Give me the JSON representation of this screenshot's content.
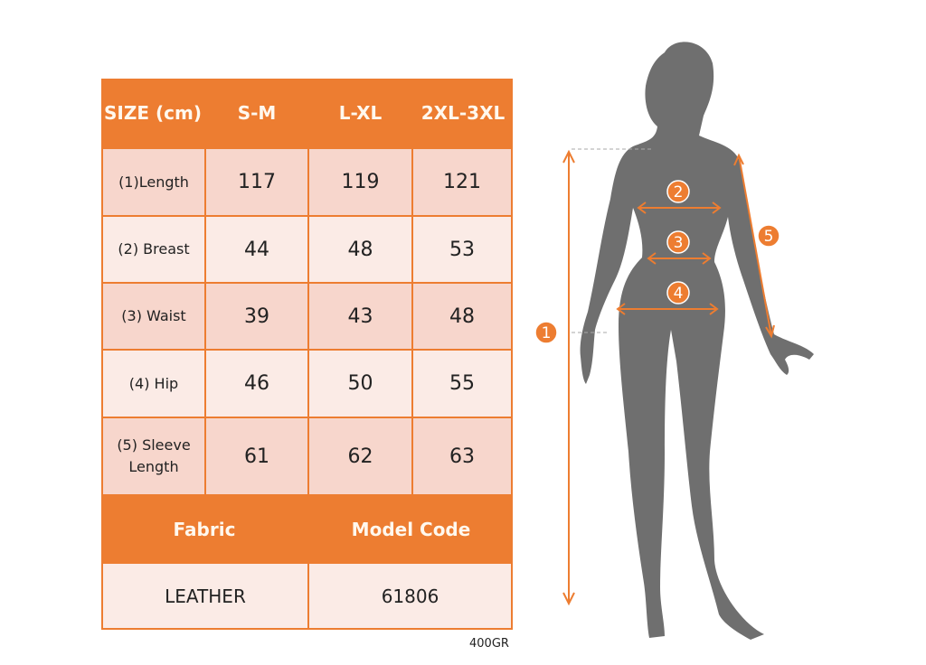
{
  "table": {
    "header": [
      "SIZE (cm)",
      "S-M",
      "L-XL",
      "2XL-3XL"
    ],
    "rows": [
      {
        "label": "(1)Length",
        "values": [
          "117",
          "119",
          "121"
        ]
      },
      {
        "label": "(2) Breast",
        "values": [
          "44",
          "48",
          "53"
        ]
      },
      {
        "label": "(3) Waist",
        "values": [
          "39",
          "43",
          "48"
        ]
      },
      {
        "label": "(4) Hip",
        "values": [
          "46",
          "50",
          "55"
        ]
      },
      {
        "label": "(5) Sleeve Length",
        "values": [
          "61",
          "62",
          "63"
        ]
      }
    ],
    "footer_header": [
      "Fabric",
      "Model Code"
    ],
    "footer_values": [
      "LEATHER",
      "61806"
    ]
  },
  "weight_note": "400GR",
  "figure": {
    "markers": [
      "1",
      "2",
      "3",
      "4",
      "5"
    ]
  },
  "colors": {
    "accent": "#ed7d31",
    "row_dark": "#f7d6cc",
    "row_light": "#fbebe6",
    "silhouette": "#6f6f6f"
  }
}
